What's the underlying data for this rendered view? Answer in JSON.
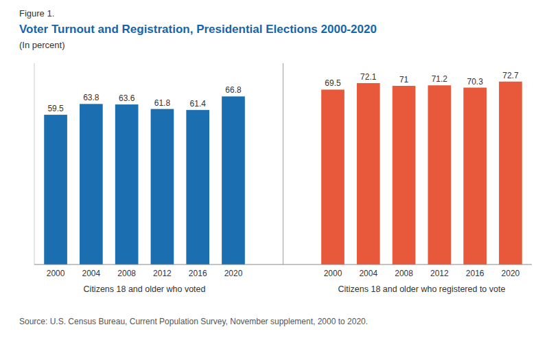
{
  "chart_data": {
    "type": "bar",
    "figure_label": "Figure 1.",
    "title": "Voter Turnout and Registration, Presidential Elections 2000-2020",
    "subtitle": "(In percent)",
    "source": "Source: U.S. Census Bureau, Current Population Survey, November supplement, 2000 to 2020.",
    "categories": [
      "2000",
      "2004",
      "2008",
      "2012",
      "2016",
      "2020"
    ],
    "series": [
      {
        "name": "Citizens 18 and older who voted",
        "color": "#1B6EAF",
        "values": [
          59.5,
          63.8,
          63.6,
          61.8,
          61.4,
          66.8
        ]
      },
      {
        "name": "Citizens 18 and older who registered to vote",
        "color": "#E8583A",
        "values": [
          69.5,
          72.1,
          71.0,
          71.2,
          70.3,
          72.7
        ]
      }
    ],
    "ylim": [
      0,
      80
    ],
    "data_labels": true,
    "tick_labels": "x"
  }
}
